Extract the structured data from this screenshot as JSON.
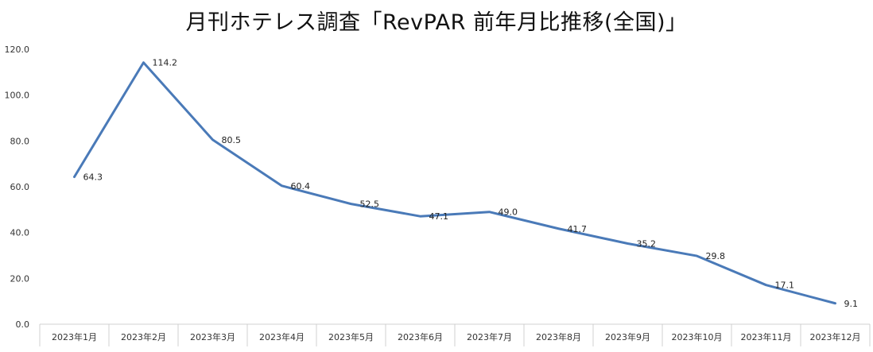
{
  "chart_data": {
    "type": "line",
    "title": "月刊ホテレス調査「RevPAR 前年月比推移(全国)」",
    "categories": [
      "2023年1月",
      "2023年2月",
      "2023年3月",
      "2023年4月",
      "2023年5月",
      "2023年6月",
      "2023年7月",
      "2023年8月",
      "2023年9月",
      "2023年10月",
      "2023年11月",
      "2023年12月"
    ],
    "values": [
      64.3,
      114.2,
      80.5,
      60.4,
      52.5,
      47.1,
      49.0,
      41.7,
      35.2,
      29.8,
      17.1,
      9.1
    ],
    "value_labels": [
      "64.3",
      "114.2",
      "80.5",
      "60.4",
      "52.5",
      "47.1",
      "49.0",
      "41.7",
      "35.2",
      "29.8",
      "17.1",
      "9.1"
    ],
    "yticks": [
      "0.0",
      "20.0",
      "40.0",
      "60.0",
      "80.0",
      "100.0",
      "120.0"
    ],
    "ylim": [
      0,
      120
    ],
    "grid": false,
    "legend": "none",
    "line_color": "#4a7ab8"
  }
}
